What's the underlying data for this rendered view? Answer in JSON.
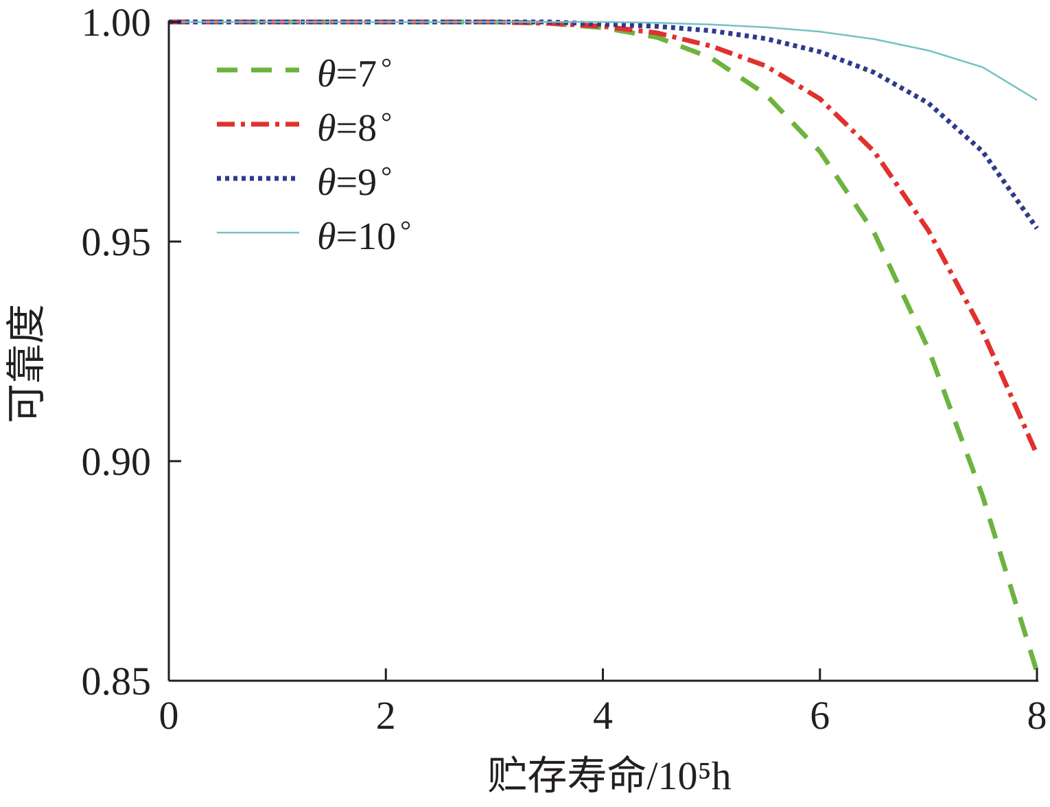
{
  "chart_data": {
    "type": "line",
    "xlabel": "贮存寿命/10⁵h",
    "ylabel": "可靠度",
    "xlim": [
      0,
      8
    ],
    "ylim": [
      0.85,
      1.0
    ],
    "x_ticks": [
      "0",
      "2",
      "4",
      "6",
      "8"
    ],
    "y_ticks": [
      "0.85",
      "0.90",
      "0.95",
      "1.00"
    ],
    "grid": false,
    "legend_position": "top-left",
    "x": [
      0,
      0.5,
      1,
      1.5,
      2,
      2.5,
      3,
      3.5,
      4,
      4.5,
      5,
      5.5,
      6,
      6.5,
      7,
      7.5,
      8
    ],
    "series": [
      {
        "name": "θ=7°",
        "color": "#6db33f",
        "style": "dashed",
        "values": [
          1.0,
          1.0,
          1.0,
          1.0,
          1.0,
          1.0,
          1.0,
          0.9997,
          0.9987,
          0.9965,
          0.9918,
          0.9835,
          0.9705,
          0.952,
          0.9255,
          0.892,
          0.852
        ]
      },
      {
        "name": "θ=8°",
        "color": "#e0312d",
        "style": "dash-dot",
        "values": [
          1.0,
          1.0,
          1.0,
          1.0,
          1.0,
          1.0,
          1.0,
          0.9997,
          0.999,
          0.9975,
          0.9945,
          0.99,
          0.9825,
          0.9705,
          0.9525,
          0.9295,
          0.9015
        ]
      },
      {
        "name": "θ=9°",
        "color": "#2e3b8c",
        "style": "dotted",
        "values": [
          1.0,
          1.0,
          1.0,
          1.0,
          1.0,
          1.0,
          1.0,
          1.0,
          0.9995,
          0.999,
          0.998,
          0.9962,
          0.9932,
          0.9885,
          0.9815,
          0.9705,
          0.953
        ]
      },
      {
        "name": "θ=10°",
        "color": "#74c1c4",
        "style": "solid",
        "values": [
          1.0,
          1.0,
          1.0,
          1.0,
          1.0,
          1.0,
          1.0,
          1.0,
          1.0,
          0.9998,
          0.9994,
          0.9988,
          0.9978,
          0.9961,
          0.9935,
          0.9897,
          0.9822
        ]
      }
    ]
  }
}
